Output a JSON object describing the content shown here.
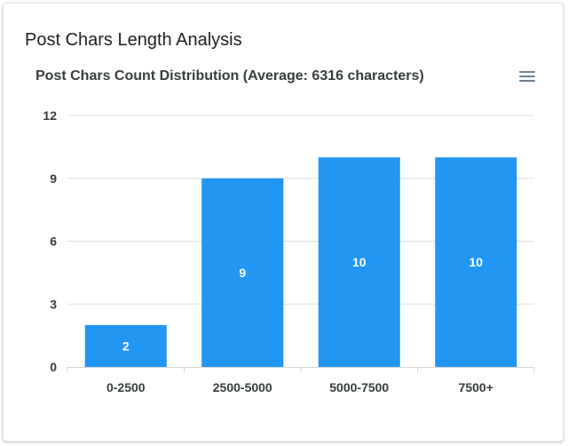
{
  "card": {
    "title": "Post Chars Length Analysis"
  },
  "chart_data": {
    "type": "bar",
    "title": "Post Chars Count Distribution (Average: 6316 characters)",
    "categories": [
      "0-2500",
      "2500-5000",
      "5000-7500",
      "7500+"
    ],
    "values": [
      2,
      9,
      10,
      10
    ],
    "ylim": [
      0,
      12
    ],
    "yticks": [
      0,
      3,
      6,
      9,
      12
    ],
    "xlabel": "",
    "ylabel": "",
    "grid": true,
    "bar_color": "#2196f3",
    "data_labels": true
  },
  "toolbar": {
    "menu_icon": "hamburger-menu-icon"
  }
}
